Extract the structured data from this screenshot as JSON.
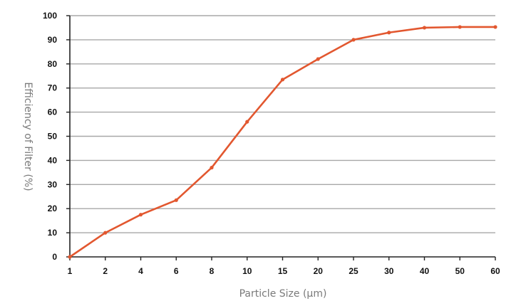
{
  "chart_data": {
    "type": "line",
    "title": "",
    "xlabel": "Particle Size (μm)",
    "ylabel": "Efficiency of Filter (%)",
    "categories": [
      "1",
      "2",
      "4",
      "6",
      "8",
      "10",
      "15",
      "20",
      "25",
      "30",
      "40",
      "50",
      "60"
    ],
    "series": [
      {
        "values": [
          0,
          10,
          17.5,
          23.5,
          37,
          56,
          73.5,
          82,
          90,
          93,
          95,
          95.3,
          95.3
        ]
      }
    ],
    "ylim": [
      0,
      100
    ],
    "yticks": [
      "0",
      "10",
      "20",
      "30",
      "40",
      "50",
      "60",
      "70",
      "80",
      "90",
      "100"
    ],
    "grid": true,
    "legend": "none",
    "colors": {
      "line": "#e2572f",
      "marker": "#e2572f",
      "grid": "#a8a8a8"
    }
  }
}
